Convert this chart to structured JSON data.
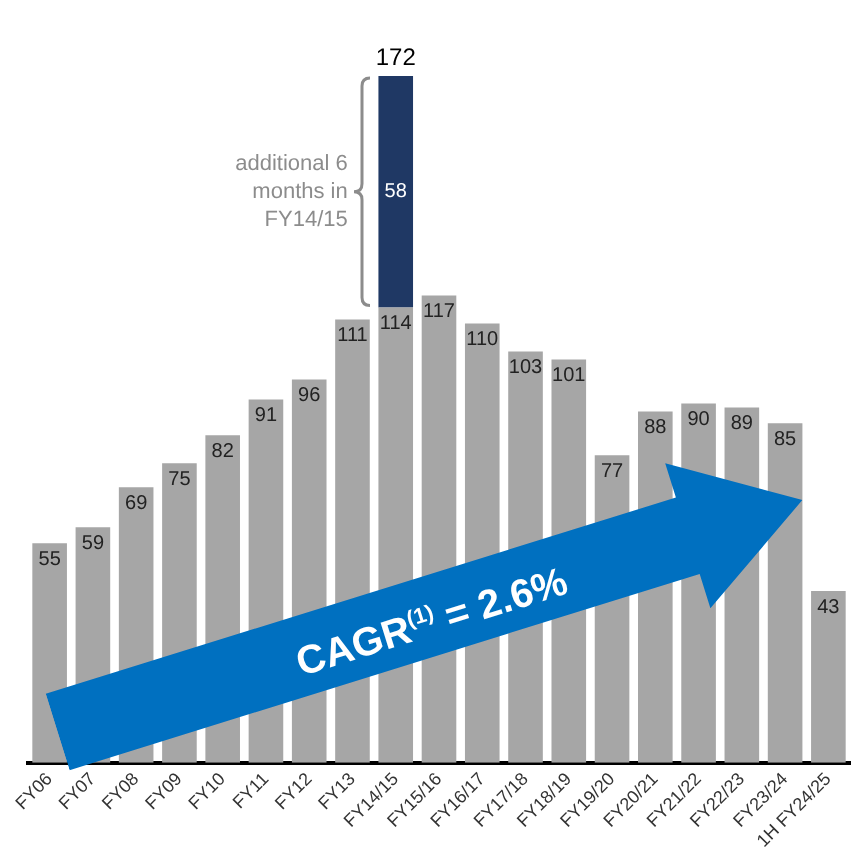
{
  "chart_data": {
    "type": "bar",
    "stacked": true,
    "categories": [
      "FY06",
      "FY07",
      "FY08",
      "FY09",
      "FY10",
      "FY11",
      "FY12",
      "FY13",
      "FY14/15",
      "FY15/16",
      "FY16/17",
      "FY17/18",
      "FY18/19",
      "FY19/20",
      "FY20/21",
      "FY21/22",
      "FY22/23",
      "FY23/24",
      "1H FY24/25"
    ],
    "series": [
      {
        "color": "#a6a6a6",
        "values": [
          55,
          59,
          69,
          75,
          82,
          91,
          96,
          111,
          114,
          117,
          110,
          103,
          101,
          77,
          88,
          90,
          89,
          85,
          43
        ]
      },
      {
        "color": "#1f3864",
        "values": [
          null,
          null,
          null,
          null,
          null,
          null,
          null,
          null,
          58,
          null,
          null,
          null,
          null,
          null,
          null,
          null,
          null,
          null,
          null
        ]
      }
    ],
    "totals": [
      null,
      null,
      null,
      null,
      null,
      null,
      null,
      null,
      "172",
      null,
      null,
      null,
      null,
      null,
      null,
      null,
      null,
      null,
      null
    ],
    "data_labels": true,
    "tick_labels": "x",
    "grid": false,
    "legend": false,
    "annotations": [
      "additional 6 months in FY14/15",
      "CAGR$^{(1)}$ = 2.6%"
    ]
  }
}
